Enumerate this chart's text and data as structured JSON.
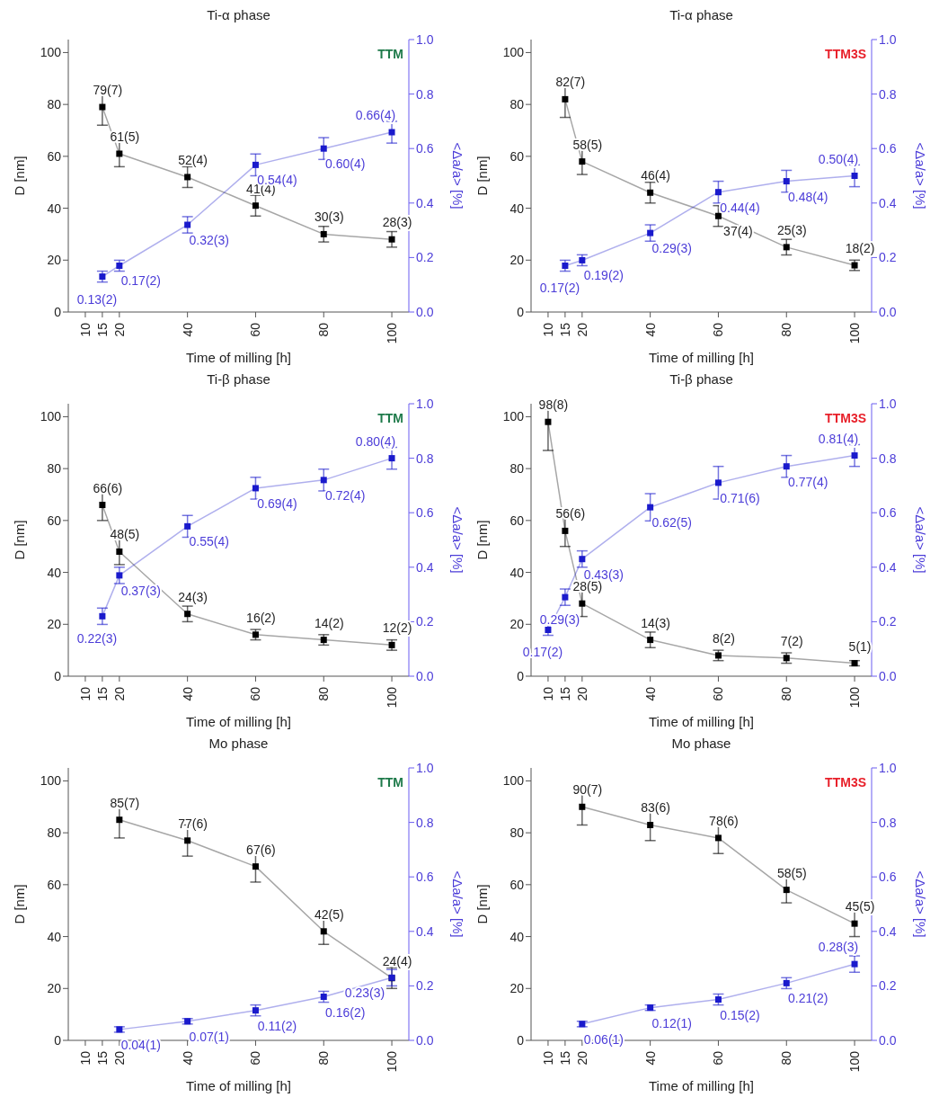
{
  "chart_data": [
    {
      "type": "line",
      "title": "Ti-α phase",
      "xlabel": "Time of milling [h]",
      "ylabel": "D [nm]",
      "y2label": "<Δa/a> [%]",
      "annotations": [
        "TTM"
      ],
      "marker": "square",
      "xlim": [
        5,
        105
      ],
      "xticks": [
        10,
        15,
        20,
        40,
        60,
        80,
        100
      ],
      "ylim": [
        0,
        105
      ],
      "yticks": [
        0,
        20,
        40,
        60,
        80,
        100
      ],
      "y2lim": [
        0,
        1
      ],
      "y2ticks": [
        {
          "value": 0,
          "label": "0.0"
        },
        {
          "value": 0.2,
          "label": "0.2"
        },
        {
          "value": 0.4,
          "label": "0.4"
        },
        {
          "value": 0.6,
          "label": "0.6"
        },
        {
          "value": 0.8,
          "label": "0.8"
        },
        {
          "value": 1,
          "label": "1.0"
        }
      ],
      "series": [
        {
          "color": "#000000",
          "x": [
            15,
            20,
            40,
            60,
            80,
            100
          ],
          "values": [
            79,
            61,
            52,
            41,
            30,
            28
          ],
          "errors": [
            7,
            5,
            4,
            4,
            3,
            3
          ],
          "value_labels": [
            "79(7)",
            "61(5)",
            "52(4)",
            "41(4)",
            "30(3)",
            "28(3)"
          ]
        },
        {
          "color": "#1a1acc",
          "axis": "y2",
          "x": [
            15,
            20,
            40,
            60,
            80,
            100
          ],
          "values": [
            0.13,
            0.17,
            0.32,
            0.54,
            0.6,
            0.66
          ],
          "errors": [
            0.02,
            0.02,
            0.03,
            0.04,
            0.04,
            0.04
          ],
          "value_labels": [
            "0.13(2)",
            "0.17(2)",
            "0.32(3)",
            "0.54(4)",
            "0.60(4)",
            "0.66(4)"
          ]
        }
      ]
    },
    {
      "type": "line",
      "title": "Ti-α phase",
      "xlabel": "Time of milling [h]",
      "ylabel": "D [nm]",
      "y2label": "<Δa/a> [%]",
      "annotations": [
        "TTM3S"
      ],
      "marker": "square",
      "xlim": [
        5,
        105
      ],
      "xticks": [
        10,
        15,
        20,
        40,
        60,
        80,
        100
      ],
      "ylim": [
        0,
        105
      ],
      "yticks": [
        0,
        20,
        40,
        60,
        80,
        100
      ],
      "y2lim": [
        0,
        1
      ],
      "y2ticks": [
        {
          "value": 0,
          "label": "0.0"
        },
        {
          "value": 0.2,
          "label": "0.2"
        },
        {
          "value": 0.4,
          "label": "0.4"
        },
        {
          "value": 0.6,
          "label": "0.6"
        },
        {
          "value": 0.8,
          "label": "0.8"
        },
        {
          "value": 1,
          "label": "1.0"
        }
      ],
      "series": [
        {
          "color": "#000000",
          "x": [
            15,
            20,
            40,
            60,
            80,
            100
          ],
          "values": [
            82,
            58,
            46,
            37,
            25,
            18
          ],
          "errors": [
            7,
            5,
            4,
            4,
            3,
            2
          ],
          "value_labels": [
            "82(7)",
            "58(5)",
            "46(4)",
            "37(4)",
            "25(3)",
            "18(2)"
          ]
        },
        {
          "color": "#1a1acc",
          "axis": "y2",
          "x": [
            15,
            20,
            40,
            60,
            80,
            100
          ],
          "values": [
            0.17,
            0.19,
            0.29,
            0.44,
            0.48,
            0.5
          ],
          "errors": [
            0.02,
            0.02,
            0.03,
            0.04,
            0.04,
            0.04
          ],
          "value_labels": [
            "0.17(2)",
            "0.19(2)",
            "0.29(3)",
            "0.44(4)",
            "0.48(4)",
            "0.50(4)"
          ]
        }
      ]
    },
    {
      "type": "line",
      "title": "Ti-β phase",
      "xlabel": "Time of milling [h]",
      "ylabel": "D [nm]",
      "y2label": "<Δa/a> [%]",
      "annotations": [
        "TTM"
      ],
      "marker": "square",
      "xlim": [
        5,
        105
      ],
      "xticks": [
        10,
        15,
        20,
        40,
        60,
        80,
        100
      ],
      "ylim": [
        0,
        105
      ],
      "yticks": [
        0,
        20,
        40,
        60,
        80,
        100
      ],
      "y2lim": [
        0,
        1
      ],
      "y2ticks": [
        {
          "value": 0,
          "label": "0.0"
        },
        {
          "value": 0.2,
          "label": "0.2"
        },
        {
          "value": 0.4,
          "label": "0.4"
        },
        {
          "value": 0.6,
          "label": "0.6"
        },
        {
          "value": 0.8,
          "label": "0.8"
        },
        {
          "value": 1,
          "label": "1.0"
        }
      ],
      "series": [
        {
          "color": "#000000",
          "x": [
            15,
            20,
            40,
            60,
            80,
            100
          ],
          "values": [
            66,
            48,
            24,
            16,
            14,
            12
          ],
          "errors": [
            6,
            5,
            3,
            2,
            2,
            2
          ],
          "value_labels": [
            "66(6)",
            "48(5)",
            "24(3)",
            "16(2)",
            "14(2)",
            "12(2)"
          ]
        },
        {
          "color": "#1a1acc",
          "axis": "y2",
          "x": [
            15,
            20,
            40,
            60,
            80,
            100
          ],
          "values": [
            0.22,
            0.37,
            0.55,
            0.69,
            0.72,
            0.8
          ],
          "errors": [
            0.03,
            0.03,
            0.04,
            0.04,
            0.04,
            0.04
          ],
          "value_labels": [
            "0.22(3)",
            "0.37(3)",
            "0.55(4)",
            "0.69(4)",
            "0.72(4)",
            "0.80(4)"
          ]
        }
      ]
    },
    {
      "type": "line",
      "title": "Ti-β phase",
      "xlabel": "Time of milling [h]",
      "ylabel": "D [nm]",
      "y2label": "<Δa/a> [%]",
      "annotations": [
        "TTM3S"
      ],
      "marker": "square",
      "xlim": [
        5,
        105
      ],
      "xticks": [
        10,
        15,
        20,
        40,
        60,
        80,
        100
      ],
      "ylim": [
        0,
        105
      ],
      "yticks": [
        0,
        20,
        40,
        60,
        80,
        100
      ],
      "y2lim": [
        0,
        1
      ],
      "y2ticks": [
        {
          "value": 0,
          "label": "0.0"
        },
        {
          "value": 0.2,
          "label": "0.2"
        },
        {
          "value": 0.4,
          "label": "0.4"
        },
        {
          "value": 0.6,
          "label": "0.6"
        },
        {
          "value": 0.8,
          "label": "0.8"
        },
        {
          "value": 1,
          "label": "1.0"
        }
      ],
      "series": [
        {
          "color": "#000000",
          "x": [
            10,
            15,
            20,
            40,
            60,
            80,
            100
          ],
          "values": [
            98,
            56,
            28,
            14,
            8,
            7,
            5
          ],
          "errors": [
            [
              87,
              103
            ],
            6,
            5,
            3,
            2,
            2,
            1
          ],
          "value_labels": [
            "98(8)",
            "56(6)",
            "28(5)",
            "14(3)",
            "8(2)",
            "7(2)",
            "5(1)"
          ]
        },
        {
          "color": "#1a1acc",
          "axis": "y2",
          "x": [
            10,
            15,
            20,
            40,
            60,
            80,
            100
          ],
          "values": [
            0.17,
            0.29,
            0.43,
            0.62,
            0.71,
            0.77,
            0.81
          ],
          "errors": [
            0.02,
            0.03,
            0.03,
            0.05,
            0.06,
            0.04,
            0.04
          ],
          "value_labels": [
            "0.17(2)",
            "0.29(3)",
            "0.43(3)",
            "0.62(5)",
            "0.71(6)",
            "0.77(4)",
            "0.81(4)"
          ]
        }
      ]
    },
    {
      "type": "line",
      "title": "Mo phase",
      "xlabel": "Time of milling [h]",
      "ylabel": "D [nm]",
      "y2label": "<Δa/a> [%]",
      "annotations": [
        "TTM"
      ],
      "marker": "square",
      "xlim": [
        5,
        105
      ],
      "xticks": [
        10,
        15,
        20,
        40,
        60,
        80,
        100
      ],
      "ylim": [
        0,
        105
      ],
      "yticks": [
        0,
        20,
        40,
        60,
        80,
        100
      ],
      "y2lim": [
        0,
        1
      ],
      "y2ticks": [
        {
          "value": 0,
          "label": "0.0"
        },
        {
          "value": 0.2,
          "label": "0.2"
        },
        {
          "value": 0.4,
          "label": "0.4"
        },
        {
          "value": 0.6,
          "label": "0.6"
        },
        {
          "value": 0.8,
          "label": "0.8"
        },
        {
          "value": 1,
          "label": "1.0"
        }
      ],
      "series": [
        {
          "color": "#000000",
          "x": [
            20,
            40,
            60,
            80,
            100
          ],
          "values": [
            85,
            77,
            67,
            42,
            24
          ],
          "errors": [
            7,
            6,
            6,
            5,
            4
          ],
          "value_labels": [
            "85(7)",
            "77(6)",
            "67(6)",
            "42(5)",
            "24(4)"
          ]
        },
        {
          "color": "#1a1acc",
          "axis": "y2",
          "x": [
            20,
            40,
            60,
            80,
            100
          ],
          "values": [
            0.04,
            0.07,
            0.11,
            0.16,
            0.23
          ],
          "errors": [
            0.01,
            0.01,
            0.02,
            0.02,
            0.03
          ],
          "value_labels": [
            "0.04(1)",
            "0.07(1)",
            "0.11(2)",
            "0.16(2)",
            "0.23(3)"
          ]
        }
      ]
    },
    {
      "type": "line",
      "title": "Mo phase",
      "xlabel": "Time of milling [h]",
      "ylabel": "D [nm]",
      "y2label": "<Δa/a> [%]",
      "annotations": [
        "TTM3S"
      ],
      "marker": "square",
      "xlim": [
        5,
        105
      ],
      "xticks": [
        10,
        15,
        20,
        40,
        60,
        80,
        100
      ],
      "ylim": [
        0,
        105
      ],
      "yticks": [
        0,
        20,
        40,
        60,
        80,
        100
      ],
      "y2lim": [
        0,
        1
      ],
      "y2ticks": [
        {
          "value": 0,
          "label": "0.0"
        },
        {
          "value": 0.2,
          "label": "0.2"
        },
        {
          "value": 0.4,
          "label": "0.4"
        },
        {
          "value": 0.6,
          "label": "0.6"
        },
        {
          "value": 0.8,
          "label": "0.8"
        },
        {
          "value": 1,
          "label": "1.0"
        }
      ],
      "series": [
        {
          "color": "#000000",
          "x": [
            20,
            40,
            60,
            80,
            100
          ],
          "values": [
            90,
            83,
            78,
            58,
            45
          ],
          "errors": [
            7,
            6,
            6,
            5,
            5
          ],
          "value_labels": [
            "90(7)",
            "83(6)",
            "78(6)",
            "58(5)",
            "45(5)"
          ]
        },
        {
          "color": "#1a1acc",
          "axis": "y2",
          "x": [
            20,
            40,
            60,
            80,
            100
          ],
          "values": [
            0.06,
            0.12,
            0.15,
            0.21,
            0.28
          ],
          "errors": [
            0.01,
            0.01,
            0.02,
            0.02,
            0.03
          ],
          "value_labels": [
            "0.06(1)",
            "0.12(1)",
            "0.15(2)",
            "0.21(2)",
            "0.28(3)"
          ]
        }
      ]
    }
  ]
}
